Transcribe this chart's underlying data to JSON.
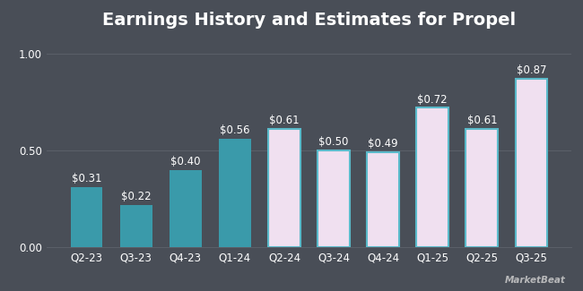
{
  "title": "Earnings History and Estimates for Propel",
  "categories": [
    "Q2-23",
    "Q3-23",
    "Q4-23",
    "Q1-24",
    "Q2-24",
    "Q3-24",
    "Q4-24",
    "Q1-25",
    "Q2-25",
    "Q3-25"
  ],
  "values": [
    0.31,
    0.22,
    0.4,
    0.56,
    0.61,
    0.5,
    0.49,
    0.72,
    0.61,
    0.87
  ],
  "labels": [
    "$0.31",
    "$0.22",
    "$0.40",
    "$0.56",
    "$0.61",
    "$0.50",
    "$0.49",
    "$0.72",
    "$0.61",
    "$0.87"
  ],
  "bar_color_history": "#3a9aaa",
  "bar_color_estimate": "#f0e0f0",
  "bar_edge_history": "#3a9aaa",
  "bar_edge_estimate": "#5abaca",
  "history_count": 4,
  "background_color": "#494e57",
  "text_color": "#ffffff",
  "grid_color": "#5a5f68",
  "ylim": [
    0,
    1.08
  ],
  "yticks": [
    0.0,
    0.5,
    1.0
  ],
  "ytick_labels": [
    "0.00",
    "0.50",
    "1.00"
  ],
  "title_fontsize": 14,
  "label_fontsize": 8.5,
  "tick_fontsize": 8.5,
  "bar_width": 0.65,
  "watermark": "MarketBeat"
}
